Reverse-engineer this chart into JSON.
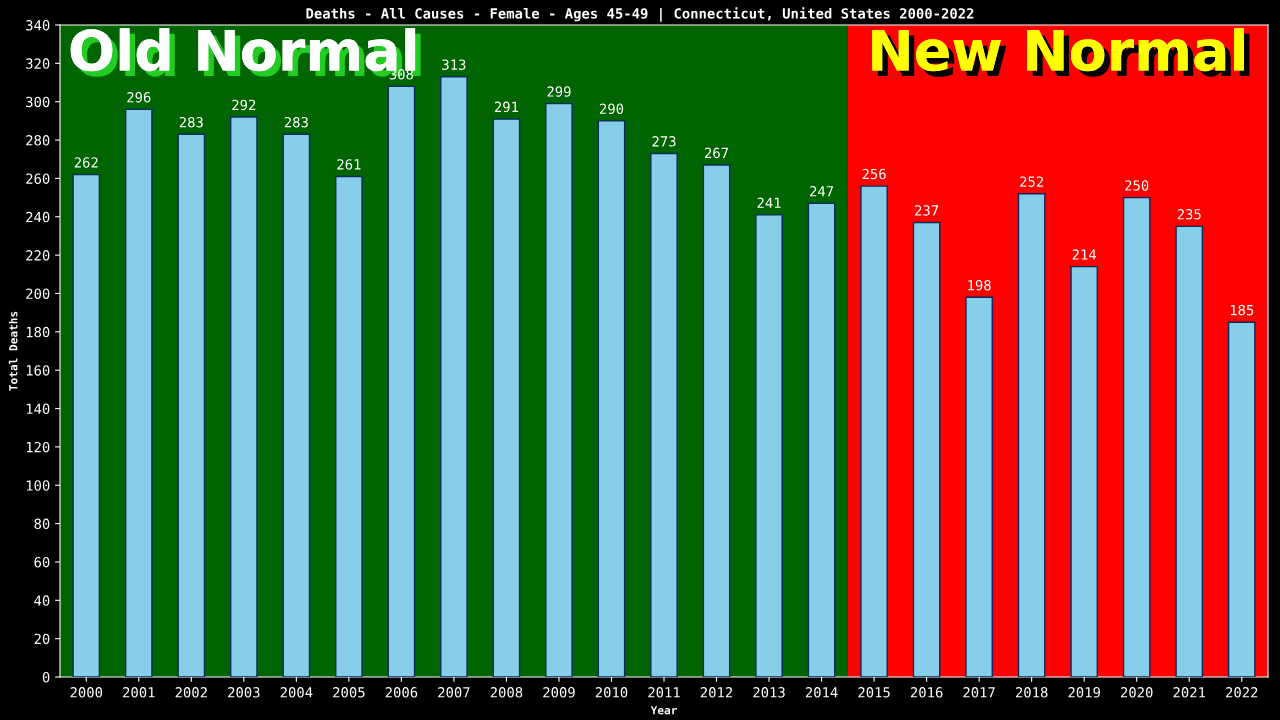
{
  "chart_data": {
    "type": "bar",
    "title": "Deaths - All Causes - Female - Ages 45-49 | Connecticut, United States 2000-2022",
    "xlabel": "Year",
    "ylabel": "Total Deaths",
    "categories": [
      "2000",
      "2001",
      "2002",
      "2003",
      "2004",
      "2005",
      "2006",
      "2007",
      "2008",
      "2009",
      "2010",
      "2011",
      "2012",
      "2013",
      "2014",
      "2015",
      "2016",
      "2017",
      "2018",
      "2019",
      "2020",
      "2021",
      "2022"
    ],
    "values": [
      262,
      296,
      283,
      292,
      283,
      261,
      308,
      313,
      291,
      299,
      290,
      273,
      267,
      241,
      247,
      256,
      237,
      198,
      252,
      214,
      250,
      235,
      185
    ],
    "color": "#87ceeb",
    "ylim": [
      0,
      340
    ],
    "yticks": [
      0,
      20,
      40,
      60,
      80,
      100,
      120,
      140,
      160,
      180,
      200,
      220,
      240,
      260,
      280,
      300,
      320,
      340
    ],
    "data_labels": true,
    "grid": false,
    "bands": [
      {
        "axis": "x",
        "from": "2000",
        "to": "2014",
        "label": "Old Normal",
        "color": "#006400"
      },
      {
        "axis": "x",
        "from": "2015",
        "to": "2022",
        "label": "New Normal",
        "color": "#ff0000"
      }
    ]
  }
}
